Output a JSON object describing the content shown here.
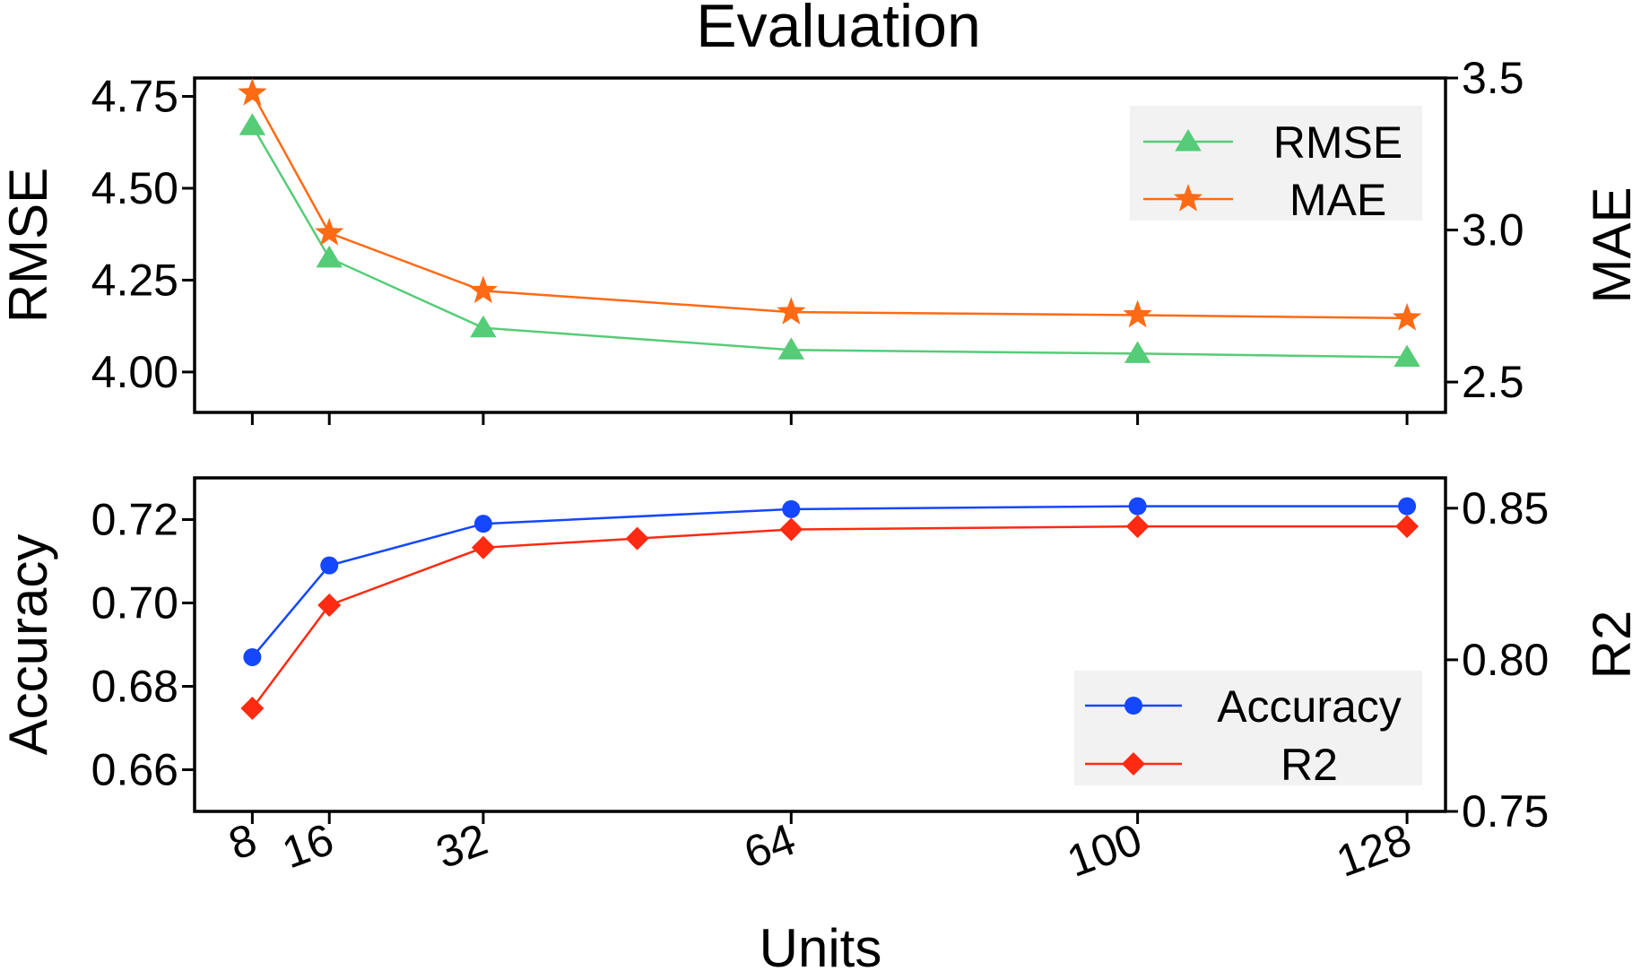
{
  "chart_data": {
    "type": "line",
    "title": "Evaluation",
    "xlabel": "Units",
    "x_ticks": [
      8,
      16,
      32,
      64,
      100,
      128
    ],
    "x_tick_labels": [
      "8",
      "16",
      "32",
      "64",
      "100",
      "128"
    ],
    "xlim": [
      2,
      132
    ],
    "panels": [
      {
        "name": "top",
        "left_axis": {
          "label": "RMSE",
          "ylim": [
            3.89,
            4.8
          ],
          "ticks": [
            4.0,
            4.25,
            4.5,
            4.75
          ],
          "tick_labels": [
            "4.00",
            "4.25",
            "4.50",
            "4.75"
          ]
        },
        "right_axis": {
          "label": "MAE",
          "ylim": [
            2.4,
            3.5
          ],
          "ticks": [
            2.5,
            3.0,
            3.5
          ],
          "tick_labels": [
            "2.5",
            "3.0",
            "3.5"
          ]
        },
        "legend": "top-right",
        "series": [
          {
            "name": "RMSE",
            "axis": "left",
            "color": "#55cc77",
            "marker": "triangle",
            "x": [
              8,
              16,
              32,
              64,
              100,
              128
            ],
            "values": [
              4.67,
              4.31,
              4.12,
              4.06,
              4.05,
              4.04
            ]
          },
          {
            "name": "MAE",
            "axis": "right",
            "color": "#ff6a14",
            "marker": "star",
            "x": [
              8,
              16,
              32,
              64,
              100,
              128
            ],
            "values": [
              3.45,
              2.99,
              2.8,
              2.73,
              2.72,
              2.71
            ]
          }
        ]
      },
      {
        "name": "bottom",
        "left_axis": {
          "label": "Accuracy",
          "ylim": [
            0.65,
            0.73
          ],
          "ticks": [
            0.66,
            0.68,
            0.7,
            0.72
          ],
          "tick_labels": [
            "0.66",
            "0.68",
            "0.70",
            "0.72"
          ]
        },
        "right_axis": {
          "label": "R2",
          "ylim": [
            0.75,
            0.86
          ],
          "ticks": [
            0.75,
            0.8,
            0.85
          ],
          "tick_labels": [
            "0.75",
            "0.80",
            "0.85"
          ]
        },
        "legend": "bottom-right",
        "series": [
          {
            "name": "Accuracy",
            "axis": "left",
            "color": "#1447ff",
            "marker": "circle",
            "x": [
              8,
              16,
              32,
              64,
              100,
              128
            ],
            "values": [
              0.687,
              0.709,
              0.719,
              0.7225,
              0.7232,
              0.7232
            ]
          },
          {
            "name": "R2",
            "axis": "right",
            "color": "#ff2a12",
            "marker": "diamond",
            "x": [
              8,
              16,
              32,
              48,
              64,
              100,
              128
            ],
            "values": [
              0.784,
              0.818,
              0.837,
              0.84,
              0.843,
              0.844,
              0.844
            ]
          }
        ]
      }
    ]
  }
}
